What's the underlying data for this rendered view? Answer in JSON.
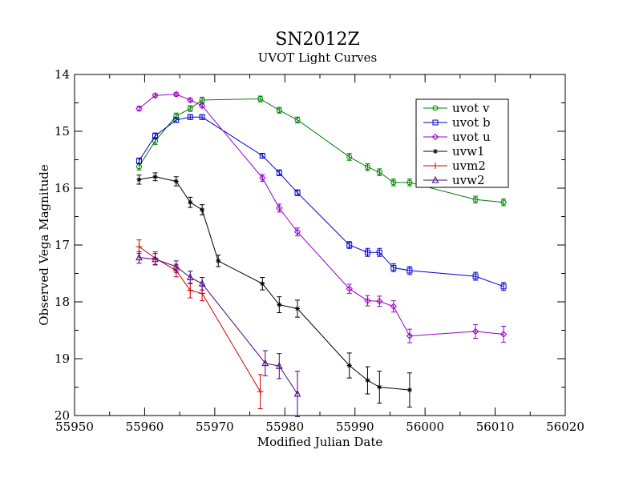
{
  "chart_data": {
    "type": "line",
    "title": "SN2012Z",
    "subtitle": "UVOT Light Curves",
    "xlabel": "Modified Julian Date",
    "ylabel": "Observed Vega Magnitude",
    "xlim": [
      55950,
      56020
    ],
    "ylim": [
      14,
      20
    ],
    "y_inverted": true,
    "x_ticks": [
      55950,
      55960,
      55970,
      55980,
      55990,
      56000,
      56010,
      56020
    ],
    "y_ticks": [
      14,
      15,
      16,
      17,
      18,
      19,
      20
    ],
    "grid": false,
    "legend_position": "top-right",
    "series": [
      {
        "name": "uvot v",
        "color": "#008000",
        "marker": "circle",
        "x": [
          55959.2,
          55961.5,
          55964.5,
          55966.5,
          55968.2,
          55976.5,
          55979.2,
          55981.8,
          55989.2,
          55991.8,
          55993.5,
          55995.5,
          55997.8,
          56007.2,
          56011.2
        ],
        "y": [
          15.62,
          15.17,
          14.73,
          14.6,
          14.45,
          14.43,
          14.63,
          14.8,
          15.45,
          15.63,
          15.72,
          15.9,
          15.9,
          16.2,
          16.25
        ],
        "err": [
          0.06,
          0.06,
          0.05,
          0.05,
          0.05,
          0.05,
          0.05,
          0.05,
          0.06,
          0.06,
          0.06,
          0.06,
          0.06,
          0.06,
          0.06
        ]
      },
      {
        "name": "uvot b",
        "color": "#0000cc",
        "marker": "square",
        "x": [
          55959.2,
          55961.5,
          55964.5,
          55966.5,
          55968.2,
          55976.8,
          55979.2,
          55981.8,
          55989.2,
          55991.8,
          55993.5,
          55995.5,
          55997.8,
          56007.2,
          56011.2
        ],
        "y": [
          15.52,
          15.08,
          14.8,
          14.75,
          14.75,
          15.43,
          15.73,
          16.08,
          17.0,
          17.13,
          17.13,
          17.4,
          17.45,
          17.55,
          17.73
        ],
        "err": [
          0.05,
          0.05,
          0.04,
          0.04,
          0.04,
          0.04,
          0.05,
          0.05,
          0.06,
          0.07,
          0.07,
          0.07,
          0.07,
          0.07,
          0.07
        ]
      },
      {
        "name": "uvot u",
        "color": "#9900cc",
        "marker": "diamond",
        "x": [
          55959.2,
          55961.5,
          55964.5,
          55966.5,
          55968.2,
          55976.8,
          55979.2,
          55981.8,
          55989.2,
          55991.8,
          55993.5,
          55995.5,
          55997.8,
          56007.2,
          56011.2
        ],
        "y": [
          14.6,
          14.37,
          14.35,
          14.45,
          14.55,
          15.82,
          16.35,
          16.77,
          17.77,
          17.98,
          17.99,
          18.08,
          18.6,
          18.52,
          18.57
        ],
        "err": [
          0.04,
          0.03,
          0.03,
          0.03,
          0.03,
          0.06,
          0.07,
          0.07,
          0.08,
          0.09,
          0.09,
          0.1,
          0.12,
          0.12,
          0.14
        ]
      },
      {
        "name": "uvw1",
        "color": "#000000",
        "marker": "asterisk",
        "x": [
          55959.2,
          55961.5,
          55964.5,
          55966.5,
          55968.2,
          55970.5,
          55976.8,
          55979.2,
          55981.8,
          55989.2,
          55991.8,
          55993.5,
          55997.8
        ],
        "y": [
          15.85,
          15.8,
          15.88,
          16.25,
          16.38,
          17.28,
          17.68,
          18.05,
          18.12,
          19.12,
          19.38,
          19.5,
          19.55
        ],
        "err": [
          0.08,
          0.07,
          0.08,
          0.09,
          0.09,
          0.1,
          0.11,
          0.14,
          0.15,
          0.22,
          0.24,
          0.28,
          0.3
        ]
      },
      {
        "name": "uvm2",
        "color": "#cc0000",
        "marker": "plus",
        "x": [
          55959.2,
          55961.5,
          55964.5,
          55966.5,
          55968.2,
          55976.5
        ],
        "y": [
          17.03,
          17.23,
          17.45,
          17.8,
          17.85,
          19.58
        ],
        "err": [
          0.12,
          0.11,
          0.11,
          0.13,
          0.13,
          0.3
        ]
      },
      {
        "name": "uvw2",
        "color": "#4b0082",
        "marker": "triangle",
        "x": [
          55959.2,
          55961.5,
          55964.5,
          55966.5,
          55968.2,
          55977.2,
          55979.2,
          55981.8
        ],
        "y": [
          17.22,
          17.25,
          17.38,
          17.57,
          17.68,
          19.08,
          19.13,
          19.62
        ],
        "err": [
          0.1,
          0.1,
          0.1,
          0.11,
          0.11,
          0.22,
          0.22,
          0.4
        ]
      }
    ]
  }
}
